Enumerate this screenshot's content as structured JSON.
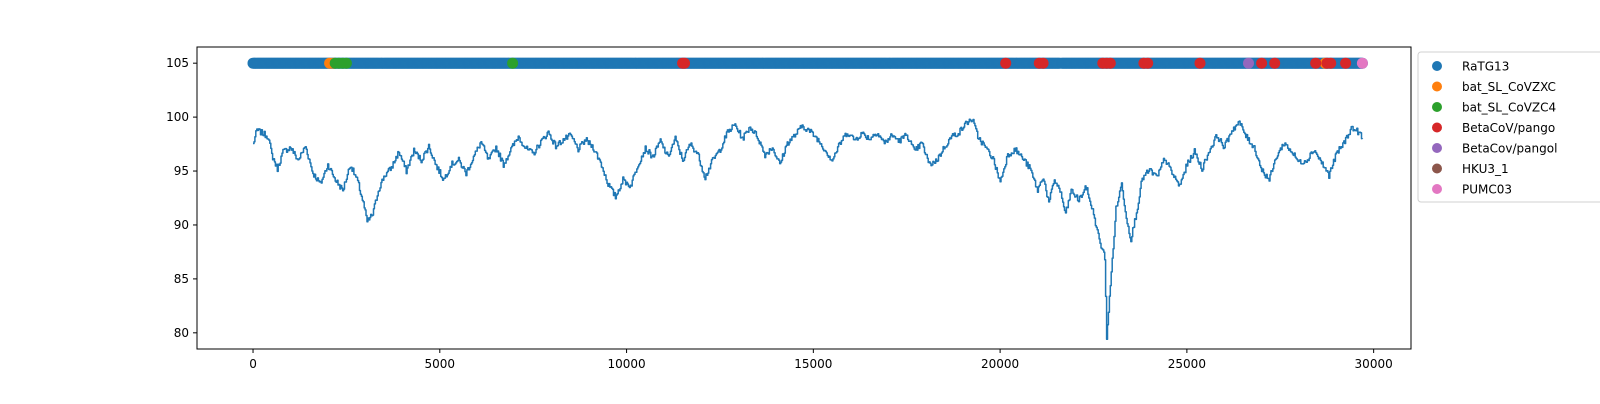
{
  "chart_data": {
    "type": "line",
    "title": "",
    "xlabel": "",
    "ylabel": "",
    "xlim": [
      -1500,
      31000
    ],
    "ylim": [
      78.5,
      106.5
    ],
    "xticks": [
      0,
      5000,
      10000,
      15000,
      20000,
      25000,
      30000
    ],
    "xtick_labels": [
      "0",
      "5000",
      "10000",
      "15000",
      "20000",
      "25000",
      "30000"
    ],
    "yticks": [
      80,
      85,
      90,
      95,
      100,
      105
    ],
    "ytick_labels": [
      "80",
      "85",
      "90",
      "95",
      "100",
      "105"
    ],
    "grid": false,
    "legend_placement": "outside upper right",
    "line_series": {
      "color": "#1f77b4",
      "x_start": 0,
      "x_end": 29700,
      "approx_profile": [
        [
          0,
          97.5
        ],
        [
          100,
          98.8
        ],
        [
          250,
          98.5
        ],
        [
          400,
          98.2
        ],
        [
          500,
          96.5
        ],
        [
          650,
          95.2
        ],
        [
          800,
          96.8
        ],
        [
          1000,
          97.2
        ],
        [
          1200,
          96.0
        ],
        [
          1400,
          97.3
        ],
        [
          1600,
          94.8
        ],
        [
          1800,
          93.8
        ],
        [
          2000,
          95.6
        ],
        [
          2200,
          94.2
        ],
        [
          2400,
          93.2
        ],
        [
          2600,
          95.6
        ],
        [
          2800,
          94.0
        ],
        [
          2950,
          92.0
        ],
        [
          3050,
          90.3
        ],
        [
          3200,
          91.0
        ],
        [
          3350,
          93.2
        ],
        [
          3500,
          94.5
        ],
        [
          3700,
          95.3
        ],
        [
          3900,
          96.8
        ],
        [
          4100,
          95.0
        ],
        [
          4300,
          96.9
        ],
        [
          4500,
          96.0
        ],
        [
          4700,
          97.3
        ],
        [
          4900,
          95.5
        ],
        [
          5100,
          94.2
        ],
        [
          5300,
          95.6
        ],
        [
          5500,
          96.0
        ],
        [
          5700,
          94.8
        ],
        [
          5900,
          96.3
        ],
        [
          6100,
          97.7
        ],
        [
          6300,
          96.0
        ],
        [
          6500,
          97.2
        ],
        [
          6700,
          95.6
        ],
        [
          6900,
          97.0
        ],
        [
          7100,
          98.2
        ],
        [
          7300,
          97.1
        ],
        [
          7500,
          96.6
        ],
        [
          7700,
          97.7
        ],
        [
          7900,
          98.6
        ],
        [
          8100,
          97.3
        ],
        [
          8300,
          97.9
        ],
        [
          8500,
          98.3
        ],
        [
          8700,
          97.0
        ],
        [
          8900,
          97.9
        ],
        [
          9100,
          97.2
        ],
        [
          9300,
          95.8
        ],
        [
          9500,
          93.8
        ],
        [
          9700,
          92.6
        ],
        [
          9900,
          94.2
        ],
        [
          10100,
          93.6
        ],
        [
          10300,
          95.6
        ],
        [
          10500,
          97.1
        ],
        [
          10700,
          96.3
        ],
        [
          10900,
          97.8
        ],
        [
          11100,
          96.3
        ],
        [
          11300,
          98.0
        ],
        [
          11500,
          96.0
        ],
        [
          11700,
          97.5
        ],
        [
          11900,
          96.6
        ],
        [
          12100,
          94.4
        ],
        [
          12300,
          96.0
        ],
        [
          12500,
          97.0
        ],
        [
          12700,
          98.6
        ],
        [
          12900,
          99.3
        ],
        [
          13100,
          98.0
        ],
        [
          13300,
          99.1
        ],
        [
          13500,
          98.2
        ],
        [
          13700,
          96.5
        ],
        [
          13900,
          97.2
        ],
        [
          14100,
          95.6
        ],
        [
          14300,
          97.6
        ],
        [
          14500,
          98.3
        ],
        [
          14700,
          99.2
        ],
        [
          14900,
          98.7
        ],
        [
          15100,
          98.0
        ],
        [
          15300,
          97.0
        ],
        [
          15500,
          96.0
        ],
        [
          15700,
          97.5
        ],
        [
          15900,
          98.6
        ],
        [
          16100,
          97.9
        ],
        [
          16300,
          98.5
        ],
        [
          16500,
          98.0
        ],
        [
          16700,
          98.6
        ],
        [
          16900,
          97.6
        ],
        [
          17100,
          98.3
        ],
        [
          17300,
          97.8
        ],
        [
          17500,
          98.4
        ],
        [
          17700,
          96.8
        ],
        [
          17900,
          97.6
        ],
        [
          18100,
          95.6
        ],
        [
          18300,
          96.0
        ],
        [
          18500,
          97.2
        ],
        [
          18700,
          98.2
        ],
        [
          18900,
          98.6
        ],
        [
          19100,
          99.5
        ],
        [
          19250,
          99.8
        ],
        [
          19400,
          98.2
        ],
        [
          19600,
          97.2
        ],
        [
          19800,
          96.2
        ],
        [
          20000,
          94.0
        ],
        [
          20200,
          96.5
        ],
        [
          20400,
          97.0
        ],
        [
          20600,
          96.2
        ],
        [
          20800,
          95.2
        ],
        [
          21000,
          93.2
        ],
        [
          21150,
          94.5
        ],
        [
          21300,
          92.0
        ],
        [
          21450,
          94.2
        ],
        [
          21600,
          93.2
        ],
        [
          21750,
          91.0
        ],
        [
          21900,
          93.2
        ],
        [
          22100,
          92.3
        ],
        [
          22300,
          93.5
        ],
        [
          22500,
          91.0
        ],
        [
          22650,
          88.6
        ],
        [
          22800,
          87.0
        ],
        [
          22850,
          79.6
        ],
        [
          22900,
          82.0
        ],
        [
          23000,
          86.8
        ],
        [
          23100,
          91.5
        ],
        [
          23250,
          93.8
        ],
        [
          23400,
          90.2
        ],
        [
          23500,
          88.7
        ],
        [
          23650,
          91.2
        ],
        [
          23800,
          94.3
        ],
        [
          24000,
          95.1
        ],
        [
          24200,
          94.4
        ],
        [
          24400,
          96.2
        ],
        [
          24600,
          94.8
        ],
        [
          24800,
          93.6
        ],
        [
          25000,
          95.6
        ],
        [
          25200,
          96.8
        ],
        [
          25400,
          95.2
        ],
        [
          25600,
          96.9
        ],
        [
          25800,
          98.3
        ],
        [
          26000,
          97.2
        ],
        [
          26200,
          98.8
        ],
        [
          26400,
          99.5
        ],
        [
          26600,
          98.1
        ],
        [
          26800,
          97.2
        ],
        [
          27000,
          95.1
        ],
        [
          27200,
          94.2
        ],
        [
          27400,
          96.4
        ],
        [
          27600,
          97.6
        ],
        [
          27800,
          96.8
        ],
        [
          28000,
          95.8
        ],
        [
          28200,
          96.0
        ],
        [
          28400,
          97.0
        ],
        [
          28600,
          95.8
        ],
        [
          28800,
          94.6
        ],
        [
          29000,
          96.6
        ],
        [
          29200,
          97.6
        ],
        [
          29400,
          99.0
        ],
        [
          29600,
          98.6
        ],
        [
          29700,
          98.0
        ]
      ]
    },
    "scatter_series": [
      {
        "name": "RaTG13",
        "color": "#1f77b4",
        "y": 105,
        "x_ranges": [
          [
            0,
            21600
          ],
          [
            21650,
            29700
          ]
        ]
      },
      {
        "name": "bat_SL_CoVZXC",
        "color": "#ff7f0e",
        "y": 105,
        "x": [
          2050,
          2150,
          28700
        ]
      },
      {
        "name": "bat_SL_CoVZC4",
        "color": "#2ca02c",
        "y": 105,
        "x": [
          2200,
          2300,
          2400,
          2500,
          6950
        ]
      },
      {
        "name": "BetaCoV/pango",
        "color": "#d62728",
        "y": 105,
        "x": [
          11500,
          11550,
          20150,
          21050,
          21150,
          22750,
          22850,
          22950,
          23850,
          23950,
          25350,
          27000,
          27350,
          28450,
          28750,
          28850,
          29250
        ]
      },
      {
        "name": "BetaCov/pangol",
        "color": "#9467bd",
        "y": 105,
        "x": [
          26650
        ]
      },
      {
        "name": "HKU3_1",
        "color": "#8c564b",
        "y": 105,
        "x": []
      },
      {
        "name": "PUMC03",
        "color": "#e377c2",
        "y": 105,
        "x": [
          29700
        ]
      }
    ],
    "legend": [
      "RaTG13",
      "bat_SL_CoVZXC",
      "bat_SL_CoVZC4",
      "BetaCoV/pango",
      "BetaCov/pangol",
      "HKU3_1",
      "PUMC03"
    ]
  }
}
